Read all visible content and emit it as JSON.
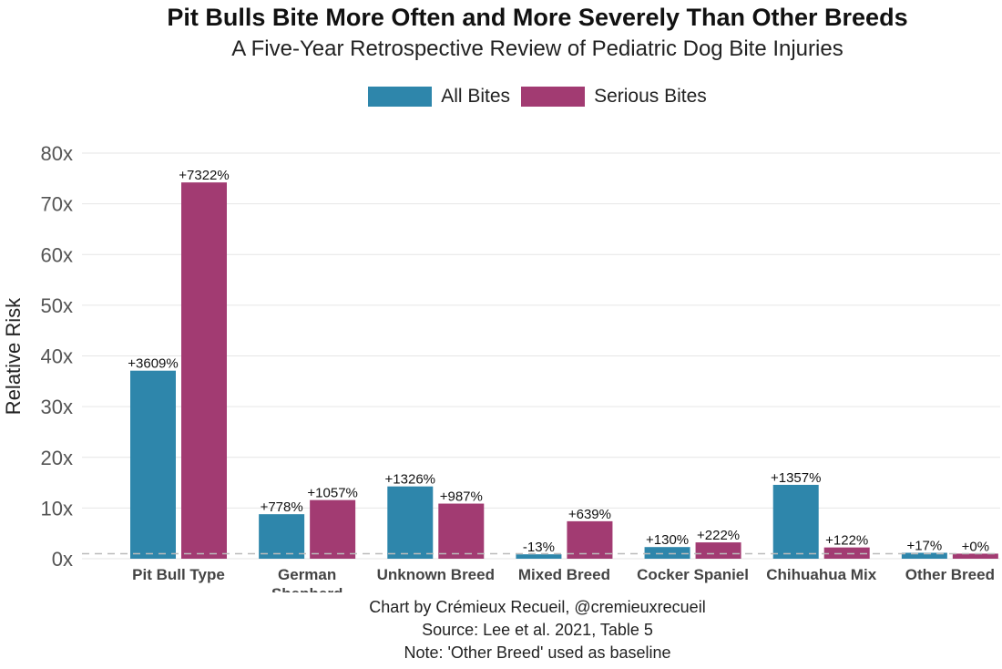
{
  "chart_data": {
    "type": "bar",
    "title": "Pit Bulls Bite More Often and More Severely Than Other Breeds",
    "subtitle": "A Five-Year Retrospective Review of Pediatric Dog Bite Injuries",
    "xlabel": "",
    "ylabel": "Relative Risk",
    "ylim": [
      0,
      80
    ],
    "yticks": [
      0,
      10,
      20,
      30,
      40,
      50,
      60,
      70,
      80
    ],
    "ytick_labels": [
      "0x",
      "10x",
      "20x",
      "30x",
      "40x",
      "50x",
      "60x",
      "70x",
      "80x"
    ],
    "baseline": 1,
    "categories": [
      "Pit Bull Type",
      "German Shepherd",
      "Unknown Breed",
      "Mixed Breed",
      "Cocker Spaniel",
      "Chihuahua Mix",
      "Other Breed"
    ],
    "category_lines": [
      [
        "Pit Bull Type"
      ],
      [
        "German",
        "Shepherd"
      ],
      [
        "Unknown Breed"
      ],
      [
        "Mixed Breed"
      ],
      [
        "Cocker Spaniel"
      ],
      [
        "Chihuahua Mix"
      ],
      [
        "Other Breed"
      ]
    ],
    "series": [
      {
        "name": "All Bites",
        "color": "#2e86ab",
        "values": [
          37.09,
          8.78,
          14.26,
          0.87,
          2.3,
          14.57,
          1.17
        ],
        "labels": [
          "+3609%",
          "+778%",
          "+1326%",
          "-13%",
          "+130%",
          "+1357%",
          "+17%"
        ]
      },
      {
        "name": "Serious Bites",
        "color": "#a23b72",
        "values": [
          74.22,
          11.57,
          10.87,
          7.39,
          3.22,
          2.22,
          1.0
        ],
        "labels": [
          "+7322%",
          "+1057%",
          "+987%",
          "+639%",
          "+222%",
          "+122%",
          "+0%"
        ]
      }
    ],
    "legend_position": "top",
    "grid": true
  },
  "captions": {
    "line1": "Chart by Crémieux Recueil, @cremieuxrecueil",
    "line2": "Source: Lee et al. 2021, Table 5",
    "line3": "Note: 'Other Breed' used as baseline"
  }
}
